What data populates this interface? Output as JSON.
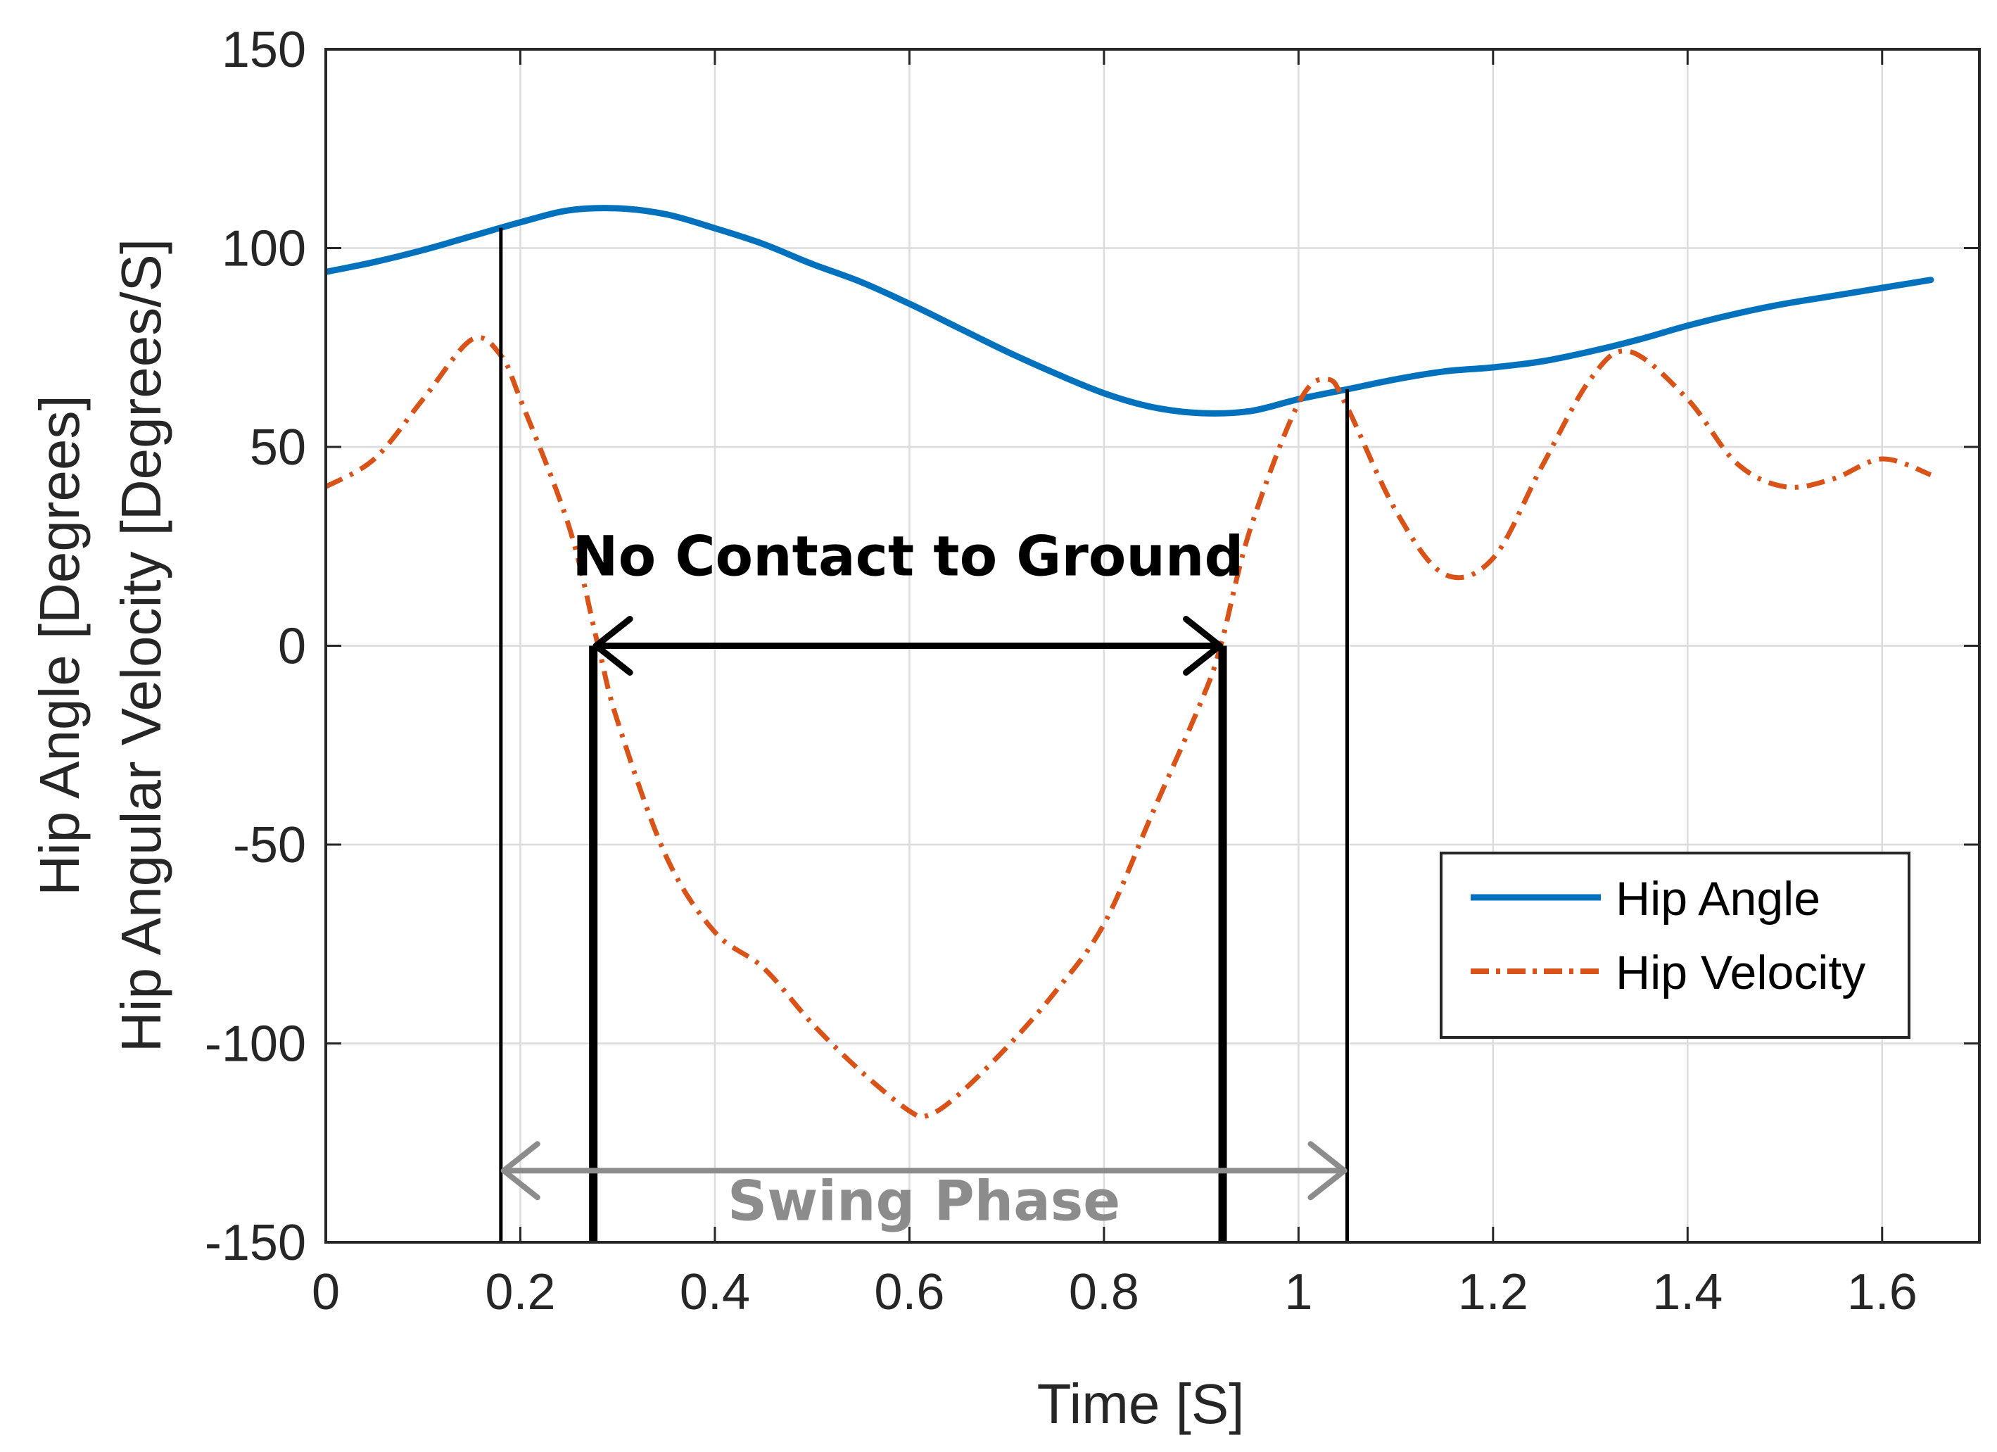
{
  "chart_data": {
    "type": "line",
    "title": "",
    "xlabel": "Time [S]",
    "ylabel_lines": [
      "Hip Angle [Degrees]",
      "Hip Angular Velocity [Degrees/S]"
    ],
    "xlim": [
      0,
      1.7
    ],
    "ylim": [
      -150,
      150
    ],
    "x_ticks": [
      0,
      0.2,
      0.4,
      0.6,
      0.8,
      1,
      1.2,
      1.4,
      1.6
    ],
    "x_tick_labels": [
      "0",
      "0.2",
      "0.4",
      "0.6",
      "0.8",
      "1",
      "1.2",
      "1.4",
      "1.6"
    ],
    "y_ticks": [
      150,
      100,
      50,
      0,
      -50,
      -100,
      -150
    ],
    "y_tick_labels": [
      "150",
      "100",
      "50",
      "0",
      "-50",
      "-100",
      "-150"
    ],
    "grid": true,
    "legend_position": "lower-right",
    "series": [
      {
        "name": "Hip Angle",
        "style": "solid",
        "color": "#0072BD",
        "x": [
          0,
          0.05,
          0.1,
          0.15,
          0.2,
          0.25,
          0.3,
          0.35,
          0.4,
          0.45,
          0.5,
          0.55,
          0.6,
          0.65,
          0.7,
          0.75,
          0.8,
          0.85,
          0.9,
          0.95,
          1.0,
          1.05,
          1.1,
          1.15,
          1.2,
          1.25,
          1.3,
          1.35,
          1.4,
          1.45,
          1.5,
          1.55,
          1.6,
          1.65
        ],
        "y": [
          94,
          96.5,
          99.5,
          103,
          106.5,
          109.5,
          110,
          108.5,
          105,
          101,
          96,
          91.5,
          86,
          80,
          74,
          68.5,
          63.5,
          60,
          58.5,
          59,
          62,
          64.5,
          67,
          69,
          70,
          71.5,
          74,
          77,
          80.5,
          83.5,
          86,
          88,
          90,
          92
        ]
      },
      {
        "name": "Hip Velocity",
        "style": "dash-dot",
        "color": "#D95319",
        "x": [
          0,
          0.05,
          0.1,
          0.15,
          0.18,
          0.2,
          0.25,
          0.28,
          0.3,
          0.35,
          0.4,
          0.45,
          0.5,
          0.55,
          0.6,
          0.62,
          0.65,
          0.7,
          0.75,
          0.8,
          0.85,
          0.9,
          0.92,
          0.95,
          1.0,
          1.03,
          1.05,
          1.1,
          1.15,
          1.2,
          1.25,
          1.3,
          1.34,
          1.4,
          1.45,
          1.5,
          1.55,
          1.6,
          1.65
        ],
        "y": [
          40,
          47,
          62,
          77,
          73,
          62,
          30,
          0,
          -19,
          -53,
          -72,
          -81,
          -95,
          -107,
          -117,
          -118,
          -113,
          -101,
          -87,
          -70,
          -42,
          -14,
          0,
          29,
          61,
          67,
          60,
          34,
          18,
          22,
          45,
          67,
          74,
          62,
          46,
          40,
          42,
          47,
          43
        ]
      }
    ],
    "vertical_markers": [
      {
        "x": 0.18,
        "weight": "thin"
      },
      {
        "x": 0.275,
        "weight": "thick"
      },
      {
        "x": 0.922,
        "weight": "thick"
      },
      {
        "x": 1.05,
        "weight": "thin"
      }
    ],
    "annotations": [
      {
        "text": "No Contact to Ground",
        "color": "#000000",
        "arrow_from_x": 0.275,
        "arrow_to_x": 0.922,
        "arrow_y": 0
      },
      {
        "text": "Swing Phase",
        "color": "#8c8c8c",
        "arrow_from_x": 0.18,
        "arrow_to_x": 1.05,
        "arrow_y": -132
      }
    ]
  }
}
